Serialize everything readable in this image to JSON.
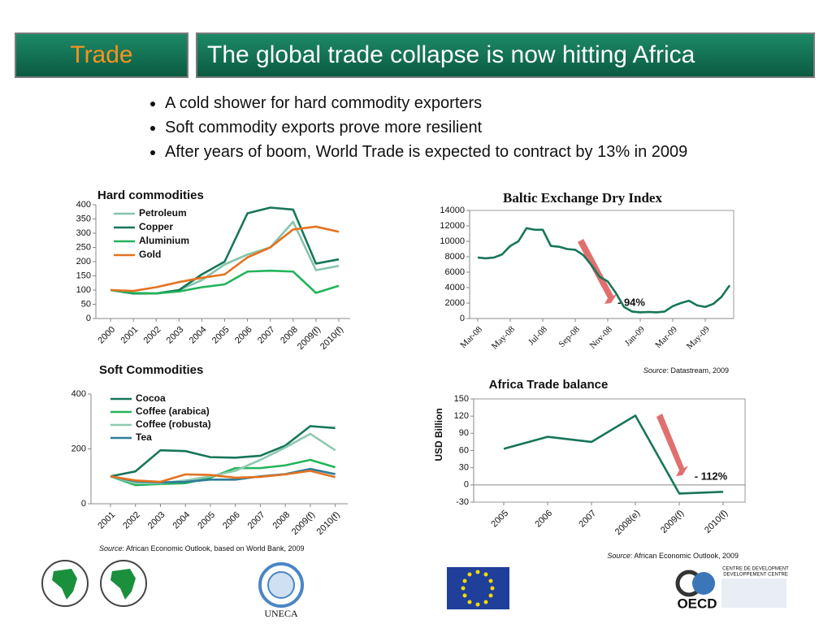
{
  "header": {
    "section": "Trade",
    "title": "The global trade collapse is now hitting Africa"
  },
  "bullets": [
    "A cold shower for hard commodity exporters",
    "Soft commodity exports prove more resilient",
    "After years of boom, World Trade is expected to contract by 13% in 2009"
  ],
  "chart_data": [
    {
      "type": "line",
      "title": "Hard commodities",
      "categories": [
        "2000",
        "2001",
        "2002",
        "2003",
        "2004",
        "2005",
        "2006",
        "2007",
        "2008",
        "2009(f)",
        "2010(f)"
      ],
      "series": [
        {
          "name": "Petroleum",
          "color": "#86c4ac",
          "values": [
            100,
            88,
            88,
            100,
            135,
            190,
            225,
            250,
            340,
            170,
            185
          ]
        },
        {
          "name": "Copper",
          "color": "#17765a",
          "values": [
            100,
            88,
            88,
            100,
            155,
            200,
            370,
            390,
            383,
            193,
            208
          ]
        },
        {
          "name": "Aluminium",
          "color": "#22b45a",
          "values": [
            100,
            90,
            88,
            95,
            110,
            120,
            165,
            168,
            165,
            90,
            115
          ]
        },
        {
          "name": "Gold",
          "color": "#e5721f",
          "values": [
            100,
            97,
            110,
            128,
            143,
            155,
            215,
            250,
            313,
            323,
            305
          ]
        }
      ],
      "ylim": [
        0,
        400
      ],
      "yticks": [
        0,
        50,
        100,
        150,
        200,
        250,
        300,
        350,
        400
      ],
      "legend": "top-left"
    },
    {
      "type": "line",
      "title": "Baltic Exchange Dry Index",
      "categories": [
        "Mar-08",
        null,
        null,
        null,
        "May-08",
        null,
        null,
        null,
        "Jul-08",
        null,
        null,
        null,
        "Sep-08",
        null,
        null,
        null,
        "Nov-08",
        null,
        null,
        null,
        "Jan-09",
        null,
        null,
        null,
        "Mar-09",
        null,
        null,
        null,
        "May-09",
        null,
        null,
        null
      ],
      "series": [
        {
          "color": "#17765a",
          "values": [
            7900,
            7800,
            7900,
            8300,
            9400,
            10000,
            11700,
            11500,
            11500,
            9400,
            9300,
            9000,
            8900,
            8200,
            6900,
            5400,
            4800,
            3300,
            1500,
            900,
            800,
            850,
            800,
            900,
            1600,
            2000,
            2300,
            1700,
            1500,
            1900,
            2800,
            4300
          ]
        }
      ],
      "ylim": [
        0,
        14000
      ],
      "yticks": [
        0,
        2000,
        4000,
        6000,
        8000,
        10000,
        12000,
        14000
      ],
      "annotation": "- 94%",
      "source_label": "Source",
      "source_text": ": Datastream, 2009"
    },
    {
      "type": "line",
      "title": "Soft Commodities",
      "categories": [
        "2001",
        "2002",
        "2003",
        "2004",
        "2005",
        "2006",
        "2007",
        "2008",
        "2009(f)",
        "2010(f)"
      ],
      "series": [
        {
          "name": "Cocoa",
          "color": "#17765a",
          "values": [
            100,
            118,
            195,
            192,
            170,
            168,
            175,
            212,
            283,
            276
          ]
        },
        {
          "name": "Coffee (arabica)",
          "color": "#22b45a",
          "values": [
            100,
            68,
            72,
            75,
            95,
            130,
            130,
            140,
            160,
            133
          ]
        },
        {
          "name": "Coffee (robusta)",
          "color": "#8fc9b0",
          "values": [
            100,
            75,
            75,
            85,
            100,
            120,
            160,
            205,
            255,
            195
          ]
        },
        {
          "name": "Tea",
          "color": "#2e7c98",
          "values": [
            100,
            82,
            78,
            80,
            88,
            88,
            100,
            108,
            127,
            108
          ]
        },
        {
          "color": "#e5721f",
          "values": [
            100,
            85,
            80,
            107,
            105,
            95,
            98,
            107,
            120,
            97
          ]
        }
      ],
      "ylim": [
        0,
        400
      ],
      "yticks": [
        0,
        200,
        400
      ],
      "legend": "top-left",
      "source_label": "Source",
      "source_text": ": African Economic Outlook, based on World Bank, 2009"
    },
    {
      "type": "line",
      "title": "Africa Trade balance",
      "ylabel": "USD Billion",
      "categories": [
        "2005",
        "2006",
        "2007",
        "2008(e)",
        "2009(f)",
        "2010(f)"
      ],
      "series": [
        {
          "color": "#17765a",
          "values": [
            63,
            84,
            75,
            121,
            -15,
            -12
          ]
        }
      ],
      "ylim": [
        -30,
        150
      ],
      "yticks": [
        -30,
        0,
        30,
        60,
        90,
        120,
        150
      ],
      "annotation": "- 112%",
      "source_label": "Source",
      "source_text": ":  African Economic Outlook, 2009"
    }
  ],
  "logos": {
    "uneca": "UNECA",
    "oecd": "OECD",
    "centre_1": "CENTRE DE DEVELOPMENT",
    "centre_2": "DEVELOPPEMENT CENTRE"
  }
}
